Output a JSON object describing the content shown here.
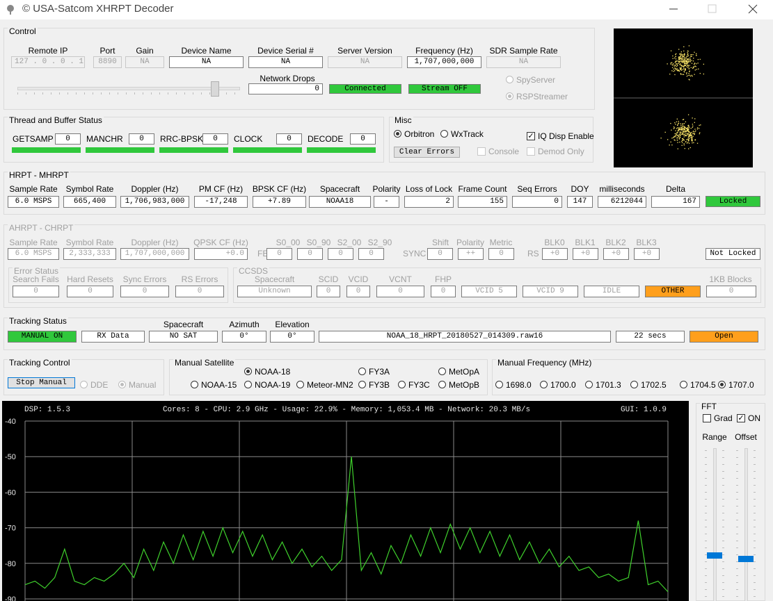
{
  "window": {
    "title": "© USA-Satcom XHRPT Decoder"
  },
  "control": {
    "title": "Control",
    "fields": [
      {
        "label": "Remote IP",
        "value": "127 . 0 . 0 . 1"
      },
      {
        "label": "Port",
        "value": "8890"
      },
      {
        "label": "Gain",
        "value": "NA"
      },
      {
        "label": "Device Name",
        "value": "NA"
      },
      {
        "label": "Device Serial #",
        "value": "NA"
      },
      {
        "label": "Server Version",
        "value": "NA"
      },
      {
        "label": "Frequency (Hz)",
        "value": "1,707,000,000"
      },
      {
        "label": "SDR Sample Rate",
        "value": "NA"
      }
    ],
    "network_drops": {
      "label": "Network Drops",
      "value": 0
    },
    "status": [
      "Connected",
      "Stream OFF"
    ],
    "source_options": [
      "SpyServer",
      "RSPStreamer"
    ],
    "source_selected": 1
  },
  "thread_buffer": {
    "title": "Thread and Buffer Status",
    "items": [
      {
        "label": "GETSAMP",
        "value": 0
      },
      {
        "label": "MANCHR",
        "value": 0
      },
      {
        "label": "RRC-BPSK",
        "value": 0
      },
      {
        "label": "CLOCK",
        "value": 0
      },
      {
        "label": "DECODE",
        "value": 0
      }
    ]
  },
  "misc": {
    "title": "Misc",
    "options": [
      "Orbitron",
      "WxTrack"
    ],
    "selected": 0,
    "checks": [
      {
        "label": "IQ Disp Enable",
        "checked": true
      },
      {
        "label": "Console",
        "checked": false
      },
      {
        "label": "Demod Only",
        "checked": false
      }
    ],
    "button": "Clear Errors"
  },
  "hrpt": {
    "title": "HRPT - MHRPT",
    "fields": [
      {
        "label": "Sample Rate",
        "value": "6.0 MSPS"
      },
      {
        "label": "Symbol Rate",
        "value": "665,400"
      },
      {
        "label": "Doppler (Hz)",
        "value": "1,706,983,000"
      },
      {
        "label": "PM CF (Hz)",
        "value": "-17,248"
      },
      {
        "label": "BPSK CF (Hz)",
        "value": "+7.89"
      },
      {
        "label": "Spacecraft",
        "value": "NOAA18"
      },
      {
        "label": "Polarity",
        "value": "-"
      },
      {
        "label": "Loss of Lock",
        "value": 2
      },
      {
        "label": "Frame Count",
        "value": 155
      },
      {
        "label": "Seq Errors",
        "value": 0
      },
      {
        "label": "DOY",
        "value": 147
      },
      {
        "label": "milliseconds",
        "value": 6212044
      },
      {
        "label": "Delta",
        "value": 167
      }
    ],
    "status": "Locked"
  },
  "ahrpt": {
    "title": "AHRPT - CHRPT",
    "fields": [
      {
        "label": "Sample Rate",
        "value": "6.0 MSPS"
      },
      {
        "label": "Symbol Rate",
        "value": "2,333,333"
      },
      {
        "label": "Doppler (Hz)",
        "value": "1,707,000,000"
      },
      {
        "label": "QPSK CF (Hz)",
        "value": "+0.0"
      }
    ],
    "fec": {
      "label": "FEC",
      "items": [
        {
          "label": "S0_00",
          "value": 0
        },
        {
          "label": "S0_90",
          "value": 0
        },
        {
          "label": "S2_00",
          "value": 0
        },
        {
          "label": "S2_90",
          "value": 0
        }
      ]
    },
    "sync": {
      "label": "SYNC",
      "items": [
        {
          "label": "Shift",
          "value": 0
        },
        {
          "label": "Polarity",
          "value": "++"
        },
        {
          "label": "Metric",
          "value": 0
        }
      ]
    },
    "rs": {
      "label": "RS",
      "items": [
        {
          "label": "BLK0",
          "value": "+0"
        },
        {
          "label": "BLK1",
          "value": "+0"
        },
        {
          "label": "BLK2",
          "value": "+0"
        },
        {
          "label": "BLK3",
          "value": "+0"
        }
      ]
    },
    "status": "Not Locked",
    "error_status": {
      "title": "Error Status",
      "items": [
        {
          "label": "Search Fails",
          "value": 0
        },
        {
          "label": "Hard Resets",
          "value": 0
        },
        {
          "label": "Sync Errors",
          "value": 0
        },
        {
          "label": "RS Errors",
          "value": 0
        }
      ]
    },
    "ccsds": {
      "title": "CCSDS",
      "items": [
        {
          "label": "Spacecraft",
          "value": "Unknown"
        },
        {
          "label": "SCID",
          "value": 0
        },
        {
          "label": "VCID",
          "value": 0
        },
        {
          "label": "VCNT",
          "value": 0
        },
        {
          "label": "FHP",
          "value": 0
        }
      ],
      "vcids": [
        "VCID 5",
        "VCID 9",
        "IDLE",
        "OTHER"
      ],
      "blocks": {
        "label": "1KB Blocks",
        "value": 0
      }
    }
  },
  "tracking_status": {
    "title": "Tracking Status",
    "mode": "MANUAL ON",
    "rx": "RX Data",
    "fields": [
      {
        "label": "Spacecraft",
        "value": "NO SAT"
      },
      {
        "label": "Azimuth",
        "value": "0°"
      },
      {
        "label": "Elevation",
        "value": "0°"
      }
    ],
    "file": "NOAA_18_HRPT_20180527_014309.raw16",
    "time": "22 secs",
    "button": "Open"
  },
  "tracking_control": {
    "title": "Tracking Control",
    "button": "Stop Manual",
    "options": [
      "DDE",
      "Manual"
    ],
    "selected": 1
  },
  "manual_satellite": {
    "title": "Manual Satellite",
    "options": [
      "NOAA-18",
      "FY3A",
      "MetOpA",
      "NOAA-15",
      "NOAA-19",
      "Meteor-MN2",
      "FY3B",
      "FY3C",
      "MetOpB"
    ],
    "selected": 0
  },
  "manual_frequency": {
    "title": "Manual Frequency (MHz)",
    "options": [
      "1698.0",
      "1700.0",
      "1701.3",
      "1702.5",
      "1704.5",
      "1707.0"
    ],
    "selected": 5
  },
  "fft": {
    "dsp": "DSP: 1.5.3",
    "stats": "Cores:  8 - CPU: 2.9 GHz - Usage:  22.9% - Memory: 1,053.4 MB - Network: 20.3 MB/s",
    "gui": "GUI: 1.0.9",
    "ylim": [
      -90,
      -40
    ],
    "yticks": [
      -40,
      -50,
      -60,
      -70,
      -80,
      -90
    ],
    "grid": true,
    "spectrum": {
      "color": "#3fd12c",
      "values": [
        -86,
        -85,
        -87,
        -84,
        -76,
        -85,
        -86,
        -84,
        -85,
        -83,
        -80,
        -84,
        -76,
        -82,
        -74,
        -80,
        -72,
        -79,
        -71,
        -78,
        -70,
        -77,
        -71,
        -78,
        -72,
        -79,
        -74,
        -80,
        -76,
        -81,
        -78,
        -82,
        -79,
        -50,
        -82,
        -77,
        -83,
        -75,
        -80,
        -72,
        -78,
        -70,
        -77,
        -69,
        -76,
        -70,
        -77,
        -71,
        -78,
        -72,
        -79,
        -74,
        -80,
        -76,
        -81,
        -78,
        -82,
        -81,
        -84,
        -83,
        -85,
        -84,
        -68,
        -86,
        -85,
        -88
      ]
    }
  },
  "fft_controls": {
    "title": "FFT",
    "checks": [
      {
        "label": "Grad",
        "checked": false
      },
      {
        "label": "ON",
        "checked": true
      }
    ],
    "sliders": [
      "Range",
      "Offset"
    ]
  }
}
